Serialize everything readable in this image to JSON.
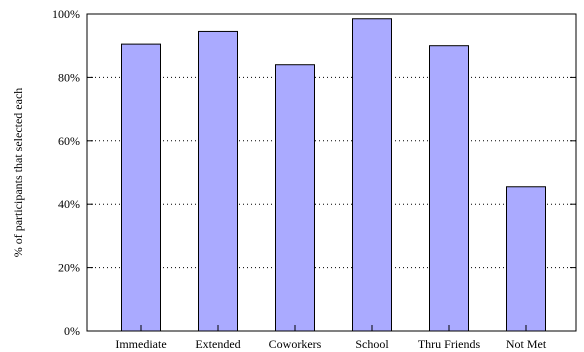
{
  "chart_data": {
    "type": "bar",
    "title": "",
    "xlabel": "",
    "ylabel": "% of participants that selected each",
    "categories": [
      "Immediate",
      "Extended",
      "Coworkers",
      "School",
      "Thru Friends",
      "Not Met"
    ],
    "values": [
      90.5,
      94.5,
      84.0,
      98.5,
      90.0,
      45.5
    ],
    "ylim": [
      0,
      100
    ],
    "yticks": [
      0,
      20,
      40,
      60,
      80,
      100
    ],
    "ytick_labels": [
      "0%",
      "20%",
      "40%",
      "60%",
      "80%",
      "100%"
    ],
    "grid": "horizontal dotted",
    "legend": "none",
    "colors": {
      "bar_fill": "#aaaaff",
      "bar_stroke": "#000000",
      "grid": "#000000",
      "axis": "#000000"
    }
  }
}
